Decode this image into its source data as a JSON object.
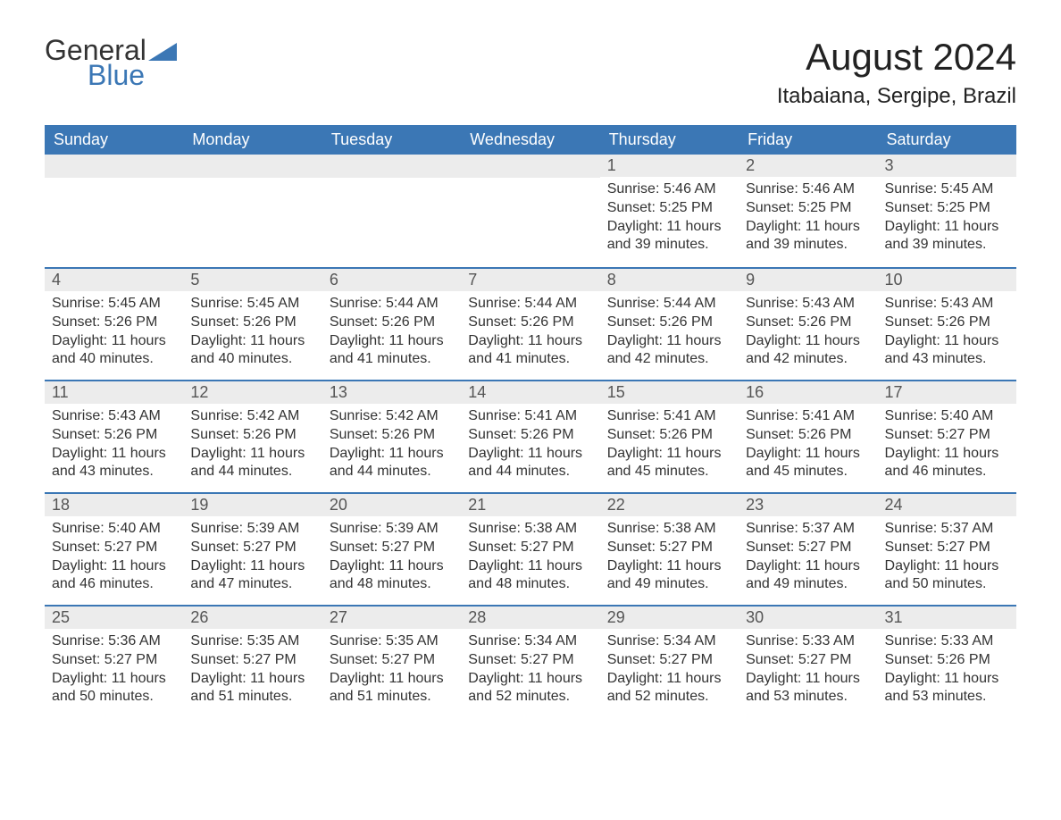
{
  "logo": {
    "word1": "General",
    "word2": "Blue"
  },
  "title": "August 2024",
  "location": "Itabaiana, Sergipe, Brazil",
  "colors": {
    "header_bg": "#3b77b5",
    "header_text": "#ffffff",
    "daynum_bg": "#ececec",
    "daynum_text": "#555555",
    "body_text": "#333333",
    "rule": "#3b77b5",
    "page_bg": "#ffffff"
  },
  "typography": {
    "title_fontsize": 42,
    "location_fontsize": 24,
    "header_fontsize": 18,
    "daynum_fontsize": 18,
    "body_fontsize": 16
  },
  "day_headers": [
    "Sunday",
    "Monday",
    "Tuesday",
    "Wednesday",
    "Thursday",
    "Friday",
    "Saturday"
  ],
  "weeks": [
    [
      {
        "blank": true
      },
      {
        "blank": true
      },
      {
        "blank": true
      },
      {
        "blank": true
      },
      {
        "day": "1",
        "sunrise": "Sunrise: 5:46 AM",
        "sunset": "Sunset: 5:25 PM",
        "daylight": "Daylight: 11 hours and 39 minutes."
      },
      {
        "day": "2",
        "sunrise": "Sunrise: 5:46 AM",
        "sunset": "Sunset: 5:25 PM",
        "daylight": "Daylight: 11 hours and 39 minutes."
      },
      {
        "day": "3",
        "sunrise": "Sunrise: 5:45 AM",
        "sunset": "Sunset: 5:25 PM",
        "daylight": "Daylight: 11 hours and 39 minutes."
      }
    ],
    [
      {
        "day": "4",
        "sunrise": "Sunrise: 5:45 AM",
        "sunset": "Sunset: 5:26 PM",
        "daylight": "Daylight: 11 hours and 40 minutes."
      },
      {
        "day": "5",
        "sunrise": "Sunrise: 5:45 AM",
        "sunset": "Sunset: 5:26 PM",
        "daylight": "Daylight: 11 hours and 40 minutes."
      },
      {
        "day": "6",
        "sunrise": "Sunrise: 5:44 AM",
        "sunset": "Sunset: 5:26 PM",
        "daylight": "Daylight: 11 hours and 41 minutes."
      },
      {
        "day": "7",
        "sunrise": "Sunrise: 5:44 AM",
        "sunset": "Sunset: 5:26 PM",
        "daylight": "Daylight: 11 hours and 41 minutes."
      },
      {
        "day": "8",
        "sunrise": "Sunrise: 5:44 AM",
        "sunset": "Sunset: 5:26 PM",
        "daylight": "Daylight: 11 hours and 42 minutes."
      },
      {
        "day": "9",
        "sunrise": "Sunrise: 5:43 AM",
        "sunset": "Sunset: 5:26 PM",
        "daylight": "Daylight: 11 hours and 42 minutes."
      },
      {
        "day": "10",
        "sunrise": "Sunrise: 5:43 AM",
        "sunset": "Sunset: 5:26 PM",
        "daylight": "Daylight: 11 hours and 43 minutes."
      }
    ],
    [
      {
        "day": "11",
        "sunrise": "Sunrise: 5:43 AM",
        "sunset": "Sunset: 5:26 PM",
        "daylight": "Daylight: 11 hours and 43 minutes."
      },
      {
        "day": "12",
        "sunrise": "Sunrise: 5:42 AM",
        "sunset": "Sunset: 5:26 PM",
        "daylight": "Daylight: 11 hours and 44 minutes."
      },
      {
        "day": "13",
        "sunrise": "Sunrise: 5:42 AM",
        "sunset": "Sunset: 5:26 PM",
        "daylight": "Daylight: 11 hours and 44 minutes."
      },
      {
        "day": "14",
        "sunrise": "Sunrise: 5:41 AM",
        "sunset": "Sunset: 5:26 PM",
        "daylight": "Daylight: 11 hours and 44 minutes."
      },
      {
        "day": "15",
        "sunrise": "Sunrise: 5:41 AM",
        "sunset": "Sunset: 5:26 PM",
        "daylight": "Daylight: 11 hours and 45 minutes."
      },
      {
        "day": "16",
        "sunrise": "Sunrise: 5:41 AM",
        "sunset": "Sunset: 5:26 PM",
        "daylight": "Daylight: 11 hours and 45 minutes."
      },
      {
        "day": "17",
        "sunrise": "Sunrise: 5:40 AM",
        "sunset": "Sunset: 5:27 PM",
        "daylight": "Daylight: 11 hours and 46 minutes."
      }
    ],
    [
      {
        "day": "18",
        "sunrise": "Sunrise: 5:40 AM",
        "sunset": "Sunset: 5:27 PM",
        "daylight": "Daylight: 11 hours and 46 minutes."
      },
      {
        "day": "19",
        "sunrise": "Sunrise: 5:39 AM",
        "sunset": "Sunset: 5:27 PM",
        "daylight": "Daylight: 11 hours and 47 minutes."
      },
      {
        "day": "20",
        "sunrise": "Sunrise: 5:39 AM",
        "sunset": "Sunset: 5:27 PM",
        "daylight": "Daylight: 11 hours and 48 minutes."
      },
      {
        "day": "21",
        "sunrise": "Sunrise: 5:38 AM",
        "sunset": "Sunset: 5:27 PM",
        "daylight": "Daylight: 11 hours and 48 minutes."
      },
      {
        "day": "22",
        "sunrise": "Sunrise: 5:38 AM",
        "sunset": "Sunset: 5:27 PM",
        "daylight": "Daylight: 11 hours and 49 minutes."
      },
      {
        "day": "23",
        "sunrise": "Sunrise: 5:37 AM",
        "sunset": "Sunset: 5:27 PM",
        "daylight": "Daylight: 11 hours and 49 minutes."
      },
      {
        "day": "24",
        "sunrise": "Sunrise: 5:37 AM",
        "sunset": "Sunset: 5:27 PM",
        "daylight": "Daylight: 11 hours and 50 minutes."
      }
    ],
    [
      {
        "day": "25",
        "sunrise": "Sunrise: 5:36 AM",
        "sunset": "Sunset: 5:27 PM",
        "daylight": "Daylight: 11 hours and 50 minutes."
      },
      {
        "day": "26",
        "sunrise": "Sunrise: 5:35 AM",
        "sunset": "Sunset: 5:27 PM",
        "daylight": "Daylight: 11 hours and 51 minutes."
      },
      {
        "day": "27",
        "sunrise": "Sunrise: 5:35 AM",
        "sunset": "Sunset: 5:27 PM",
        "daylight": "Daylight: 11 hours and 51 minutes."
      },
      {
        "day": "28",
        "sunrise": "Sunrise: 5:34 AM",
        "sunset": "Sunset: 5:27 PM",
        "daylight": "Daylight: 11 hours and 52 minutes."
      },
      {
        "day": "29",
        "sunrise": "Sunrise: 5:34 AM",
        "sunset": "Sunset: 5:27 PM",
        "daylight": "Daylight: 11 hours and 52 minutes."
      },
      {
        "day": "30",
        "sunrise": "Sunrise: 5:33 AM",
        "sunset": "Sunset: 5:27 PM",
        "daylight": "Daylight: 11 hours and 53 minutes."
      },
      {
        "day": "31",
        "sunrise": "Sunrise: 5:33 AM",
        "sunset": "Sunset: 5:26 PM",
        "daylight": "Daylight: 11 hours and 53 minutes."
      }
    ]
  ]
}
